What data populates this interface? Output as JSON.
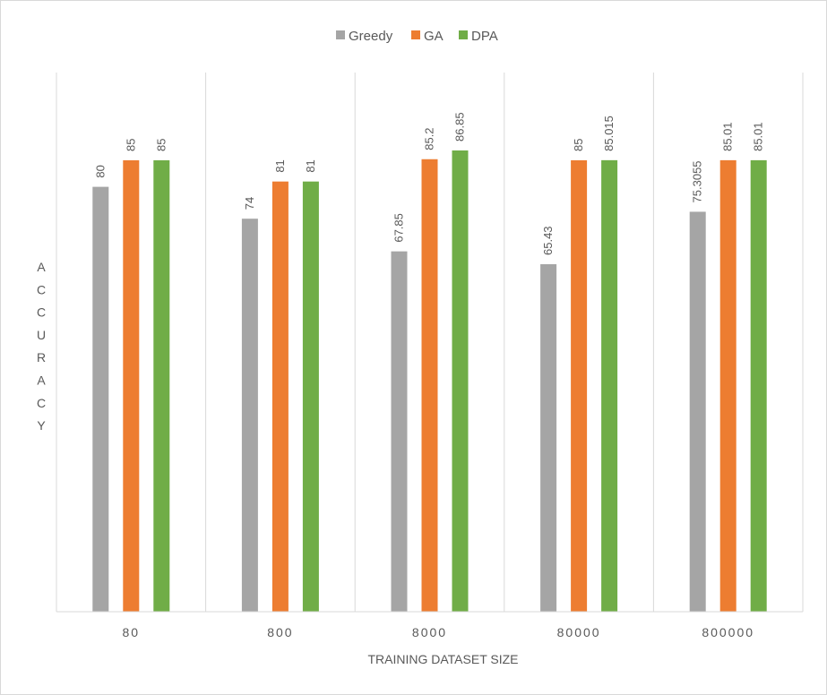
{
  "chart_data": {
    "type": "bar",
    "title": "",
    "xlabel": "TRAINING DATASET SIZE",
    "ylabel": "ACCURACY",
    "categories": [
      "80",
      "800",
      "8000",
      "80000",
      "800000"
    ],
    "series": [
      {
        "name": "Greedy",
        "color": "#a5a5a5",
        "values": [
          80,
          74,
          67.85,
          65.43,
          75.3055
        ],
        "labels": [
          "80",
          "74",
          "67.85",
          "65.43",
          "75.3055"
        ]
      },
      {
        "name": "GA",
        "color": "#ed7d31",
        "values": [
          85,
          81,
          85.2,
          85,
          85.01
        ],
        "labels": [
          "85",
          "81",
          "85.2",
          "85",
          "85.01"
        ]
      },
      {
        "name": "DPA",
        "color": "#70ad47",
        "values": [
          85,
          81,
          86.85,
          85.015,
          85.01
        ],
        "labels": [
          "85",
          "81",
          "86.85",
          "85.015",
          "85.01"
        ]
      }
    ],
    "ylim": [
      0,
      100
    ],
    "grid": {
      "vertical_category_separators": true,
      "horizontal": false
    },
    "legend": {
      "position": "top-center"
    }
  }
}
